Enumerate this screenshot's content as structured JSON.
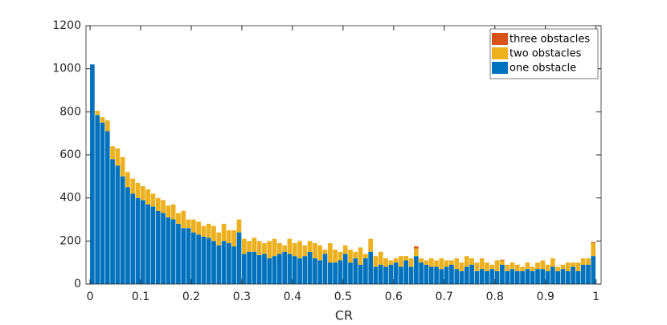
{
  "chart_data": {
    "type": "histogram",
    "xlabel": "CR",
    "bins": [
      0,
      0.01,
      0.02,
      0.03,
      0.04,
      0.05,
      0.06,
      0.07,
      0.08,
      0.09,
      0.1,
      0.11,
      0.12,
      0.13,
      0.14,
      0.15,
      0.16,
      0.17,
      0.18,
      0.19,
      0.2,
      0.21,
      0.22,
      0.23,
      0.24,
      0.25,
      0.26,
      0.27,
      0.28,
      0.29,
      0.3,
      0.31,
      0.32,
      0.33,
      0.34,
      0.35,
      0.36,
      0.37,
      0.38,
      0.39,
      0.4,
      0.41,
      0.42,
      0.43,
      0.44,
      0.45,
      0.46,
      0.47,
      0.48,
      0.49,
      0.5,
      0.51,
      0.52,
      0.53,
      0.54,
      0.55,
      0.56,
      0.57,
      0.58,
      0.59,
      0.6,
      0.61,
      0.62,
      0.63,
      0.64,
      0.65,
      0.66,
      0.67,
      0.68,
      0.69,
      0.7,
      0.71,
      0.72,
      0.73,
      0.74,
      0.75,
      0.76,
      0.77,
      0.78,
      0.79,
      0.8,
      0.81,
      0.82,
      0.83,
      0.84,
      0.85,
      0.86,
      0.87,
      0.88,
      0.89,
      0.9,
      0.91,
      0.92,
      0.93,
      0.94,
      0.95,
      0.96,
      0.97,
      0.98,
      0.99,
      1
    ],
    "stacked": true,
    "series": [
      {
        "name": "three obstacles",
        "color": "#d95319",
        "values": [
          0,
          0,
          0,
          0,
          0,
          0,
          0,
          0,
          0,
          0,
          0,
          0,
          0,
          0,
          0,
          0,
          0,
          0,
          0,
          0,
          0,
          0,
          0,
          0,
          0,
          0,
          0,
          0,
          0,
          0,
          0,
          0,
          0,
          0,
          0,
          0,
          0,
          0,
          0,
          0,
          0,
          0,
          0,
          0,
          0,
          0,
          0,
          0,
          0,
          0,
          0,
          0,
          0,
          0,
          0,
          0,
          0,
          0,
          0,
          0,
          0,
          0,
          0,
          0,
          10,
          0,
          0,
          0,
          0,
          0,
          0,
          0,
          0,
          0,
          0,
          0,
          0,
          0,
          0,
          0,
          0,
          3,
          0,
          0,
          0,
          0,
          0,
          0,
          0,
          0,
          0,
          0,
          0,
          0,
          0,
          0,
          0,
          0,
          0,
          5
        ]
      },
      {
        "name": "two obstacles",
        "color": "#edb120",
        "values": [
          0,
          20,
          25,
          50,
          60,
          80,
          90,
          70,
          70,
          70,
          65,
          70,
          60,
          60,
          60,
          55,
          70,
          50,
          80,
          40,
          60,
          60,
          50,
          65,
          70,
          60,
          80,
          60,
          75,
          60,
          70,
          50,
          65,
          65,
          50,
          80,
          80,
          50,
          30,
          70,
          60,
          80,
          50,
          50,
          70,
          70,
          20,
          90,
          60,
          40,
          40,
          60,
          30,
          80,
          20,
          60,
          50,
          60,
          40,
          20,
          20,
          50,
          20,
          40,
          35,
          20,
          20,
          40,
          30,
          50,
          30,
          20,
          50,
          40,
          50,
          30,
          40,
          50,
          40,
          20,
          50,
          20,
          30,
          30,
          30,
          20,
          30,
          20,
          30,
          40,
          30,
          40,
          20,
          20,
          40,
          20,
          40,
          30,
          30,
          60
        ]
      },
      {
        "name": "one obstacle",
        "color": "#0072bd",
        "values": [
          1020,
          785,
          750,
          710,
          580,
          550,
          500,
          450,
          420,
          400,
          390,
          370,
          360,
          340,
          330,
          310,
          300,
          280,
          260,
          260,
          240,
          230,
          220,
          215,
          200,
          180,
          200,
          190,
          175,
          240,
          140,
          150,
          150,
          135,
          140,
          120,
          130,
          140,
          150,
          140,
          130,
          120,
          130,
          150,
          120,
          110,
          140,
          100,
          100,
          110,
          140,
          100,
          120,
          90,
          120,
          150,
          80,
          90,
          80,
          90,
          100,
          80,
          110,
          80,
          130,
          100,
          90,
          80,
          80,
          70,
          80,
          90,
          70,
          60,
          80,
          90,
          60,
          70,
          60,
          70,
          60,
          90,
          60,
          70,
          60,
          60,
          70,
          60,
          70,
          70,
          60,
          80,
          60,
          70,
          60,
          80,
          60,
          90,
          90,
          130
        ]
      }
    ],
    "xlim": [
      -0.008,
      1.01
    ],
    "ylim": [
      0,
      1200
    ],
    "xticks": [
      0,
      0.1,
      0.2,
      0.3,
      0.4,
      0.5,
      0.6,
      0.7,
      0.8,
      0.9,
      1
    ],
    "yticks": [
      0,
      200,
      400,
      600,
      800,
      1000,
      1200
    ],
    "legend": "top-right"
  }
}
